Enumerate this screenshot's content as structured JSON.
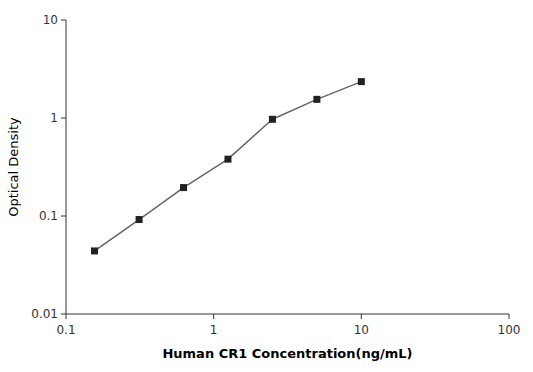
{
  "chart_data": {
    "type": "line",
    "x": [
      0.156,
      0.3125,
      0.625,
      1.25,
      2.5,
      5.0,
      10.0
    ],
    "values": [
      0.044,
      0.092,
      0.195,
      0.38,
      0.97,
      1.55,
      2.35
    ],
    "xlabel": "Human CR1 Concentration(ng/mL)",
    "ylabel": "Optical Density",
    "xlim": [
      0.1,
      100
    ],
    "ylim": [
      0.01,
      10
    ],
    "xticks": [
      0.1,
      1,
      10,
      100
    ],
    "yticks": [
      0.01,
      0.1,
      1,
      10
    ],
    "log": true,
    "grid": false,
    "color": "#666666",
    "marker": "square"
  }
}
